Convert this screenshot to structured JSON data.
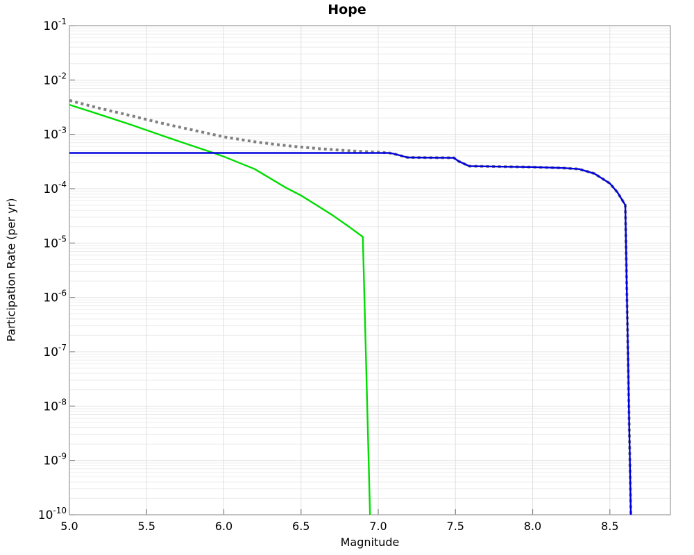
{
  "chart_data": {
    "type": "line",
    "title": "Hope",
    "xlabel": "Magnitude",
    "ylabel": "Participation Rate (per yr)",
    "xlim": [
      5.0,
      8.892
    ],
    "ylim": [
      1e-10,
      0.1
    ],
    "x_scale": "linear",
    "y_scale": "log",
    "x_ticks": [
      {
        "value": 5.0,
        "label": "5.0"
      },
      {
        "value": 5.5,
        "label": "5.5"
      },
      {
        "value": 6.0,
        "label": "6.0"
      },
      {
        "value": 6.5,
        "label": "6.5"
      },
      {
        "value": 7.0,
        "label": "7.0"
      },
      {
        "value": 7.5,
        "label": "7.5"
      },
      {
        "value": 8.0,
        "label": "8.0"
      },
      {
        "value": 8.5,
        "label": "8.5"
      }
    ],
    "y_tick_base": "10",
    "y_tick_exponents": [
      -1,
      -2,
      -3,
      -4,
      -5,
      -6,
      -7,
      -8,
      -9,
      -10
    ],
    "grid": {
      "horizontal_minor": true,
      "horizontal_major": true,
      "vertical_major": true
    },
    "legend": null,
    "colors": {
      "minor_grid": "#ececec",
      "major_grid": "#e1e1e1",
      "frame": "#a8a8a8",
      "tick": "#808080",
      "text": "#000000"
    },
    "series": [
      {
        "name": "green-solid",
        "color": "#00dd00",
        "style": "solid",
        "width": 2.4,
        "points": [
          [
            5.0,
            0.0035
          ],
          [
            5.2,
            0.0023
          ],
          [
            5.4,
            0.0015
          ],
          [
            5.6,
            0.00095
          ],
          [
            5.8,
            0.00061
          ],
          [
            5.93,
            0.00046
          ],
          [
            6.0,
            0.00039
          ],
          [
            6.2,
            0.00023
          ],
          [
            6.4,
            0.000105
          ],
          [
            6.5,
            7.5e-05
          ],
          [
            6.6,
            5e-05
          ],
          [
            6.7,
            3.3e-05
          ],
          [
            6.8,
            2.1e-05
          ],
          [
            6.9,
            1.3e-05
          ],
          [
            6.947,
            1e-10
          ]
        ]
      },
      {
        "name": "gray-dotted",
        "color": "#808080",
        "style": "dotted",
        "width": 4,
        "points": [
          [
            5.0,
            0.0042
          ],
          [
            5.2,
            0.003
          ],
          [
            5.4,
            0.0022
          ],
          [
            5.6,
            0.0016
          ],
          [
            5.8,
            0.0012
          ],
          [
            6.0,
            0.0009
          ],
          [
            6.2,
            0.00073
          ],
          [
            6.4,
            0.00062
          ],
          [
            6.6,
            0.00055
          ],
          [
            6.8,
            0.0005
          ],
          [
            7.0,
            0.00047
          ],
          [
            7.07,
            0.000455
          ],
          [
            7.1,
            0.00044
          ],
          [
            7.19,
            0.000375
          ],
          [
            7.49,
            0.00037
          ],
          [
            7.52,
            0.00032
          ],
          [
            7.59,
            0.00026
          ],
          [
            7.8,
            0.000255
          ],
          [
            8.0,
            0.00025
          ],
          [
            8.2,
            0.00024
          ],
          [
            8.3,
            0.00023
          ],
          [
            8.4,
            0.00019
          ],
          [
            8.5,
            0.000125
          ],
          [
            8.55,
            8.5e-05
          ],
          [
            8.6,
            5e-05
          ],
          [
            8.636,
            1e-10
          ]
        ]
      },
      {
        "name": "blue-solid",
        "color": "#0000dd",
        "style": "solid",
        "width": 2.4,
        "points": [
          [
            5.0,
            0.000455
          ],
          [
            7.07,
            0.000455
          ],
          [
            7.1,
            0.00044
          ],
          [
            7.19,
            0.000375
          ],
          [
            7.49,
            0.00037
          ],
          [
            7.52,
            0.00032
          ],
          [
            7.59,
            0.00026
          ],
          [
            7.8,
            0.000255
          ],
          [
            8.0,
            0.00025
          ],
          [
            8.2,
            0.00024
          ],
          [
            8.3,
            0.00023
          ],
          [
            8.4,
            0.00019
          ],
          [
            8.5,
            0.000125
          ],
          [
            8.55,
            8.5e-05
          ],
          [
            8.6,
            5e-05
          ],
          [
            8.636,
            1e-10
          ]
        ]
      }
    ]
  }
}
